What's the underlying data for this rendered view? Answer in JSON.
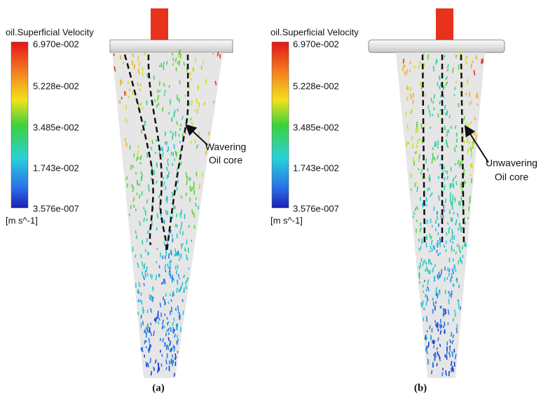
{
  "panels": [
    {
      "legend": {
        "title": "oil.Superficial Velocity",
        "ticks": [
          "6.970e-002",
          "5.228e-002",
          "3.485e-002",
          "1.743e-002",
          "3.576e-007"
        ],
        "unit": "[m s^-1]"
      },
      "annotation": [
        "Wavering",
        "Oil core"
      ],
      "caption": "(a)"
    },
    {
      "legend": {
        "title": "oil.Superficial Velocity",
        "ticks": [
          "6.970e-002",
          "5.228e-002",
          "3.485e-002",
          "1.743e-002",
          "3.576e-007"
        ],
        "unit": "[m s^-1]"
      },
      "annotation": [
        "Unwavering",
        "Oil core"
      ],
      "caption": "(b)"
    }
  ]
}
